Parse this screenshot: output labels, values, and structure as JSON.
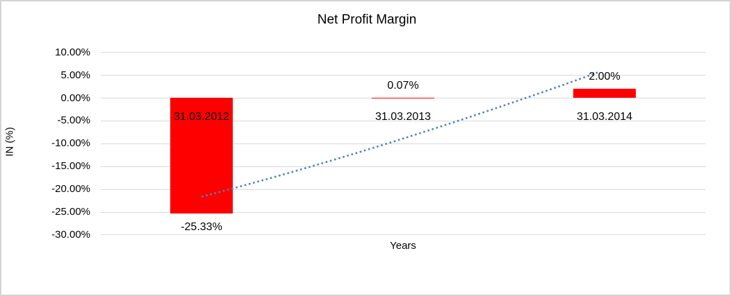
{
  "chart_data": {
    "type": "bar",
    "title": "Net Profit Margin",
    "xlabel": "Years",
    "ylabel": "IN (%)",
    "categories": [
      "31.03.2012",
      "31.03.2013",
      "31.03.2014"
    ],
    "values": [
      -25.33,
      0.07,
      2.0
    ],
    "value_labels": [
      "-25.33%",
      "0.07%",
      "2.00%"
    ],
    "ylim": [
      -30,
      10
    ],
    "ytick_step": 5,
    "ytick_labels": [
      "10.00%",
      "5.00%",
      "0.00%",
      "-5.00%",
      "-10.00%",
      "-15.00%",
      "-20.00%",
      "-25.00%",
      "-30.00%"
    ],
    "grid": "horizontal-only",
    "legend": "none",
    "bar_color": "#ff0000",
    "gridline_color": "#d9d9d9",
    "text_color": "#000000",
    "trendline": {
      "style": "dotted",
      "color": "#4f81bd",
      "points_axis_units": [
        {
          "x_category_index": 0.0,
          "value_pct": -21.7
        },
        {
          "x_category_index": 0.94,
          "value_pct": -10.9
        },
        {
          "x_category_index": 1.97,
          "value_pct": 5.6
        }
      ]
    }
  }
}
